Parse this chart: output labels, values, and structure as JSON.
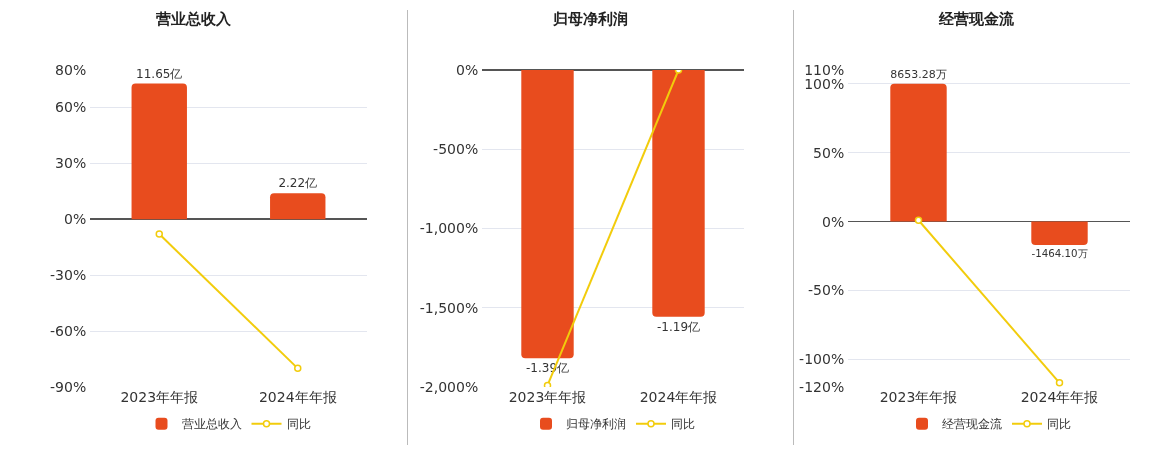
{
  "chart_data": [
    {
      "type": "bar",
      "title": "营业总收入",
      "categories": [
        "2023年年报",
        "2024年年报"
      ],
      "series": [
        {
          "name": "营业总收入",
          "color": "#e84c1e",
          "axis": "y2",
          "values": [
            11.65,
            2.22
          ],
          "value_labels": [
            "11.65亿",
            "2.22亿"
          ]
        },
        {
          "name": "同比",
          "type": "line",
          "color": "#f2cc0c",
          "values": [
            -8,
            -80
          ]
        }
      ],
      "ylim": [
        -90,
        80
      ],
      "yticks": [
        {
          "value": -90,
          "label": "-90%"
        },
        {
          "value": -60,
          "label": "-60%"
        },
        {
          "value": -30,
          "label": "-30%"
        },
        {
          "value": 0,
          "label": "0%"
        },
        {
          "value": 30,
          "label": "30%"
        },
        {
          "value": 60,
          "label": "60%"
        },
        {
          "value": 80,
          "label": "80%"
        }
      ],
      "grid": "y",
      "legend": "bottom",
      "marker": "circle"
    },
    {
      "type": "bar",
      "title": "归母净利润",
      "categories": [
        "2023年年报",
        "2024年年报"
      ],
      "series": [
        {
          "name": "归母净利润",
          "color": "#e84c1e",
          "axis": "y2",
          "values": [
            -1.39,
            -1.19
          ],
          "value_labels": [
            "-1.39亿",
            "-1.19亿"
          ]
        },
        {
          "name": "同比",
          "type": "line",
          "color": "#f2cc0c",
          "values": [
            -1990,
            0
          ]
        }
      ],
      "ylim": [
        -2000,
        0
      ],
      "yticks": [
        {
          "value": -2000,
          "label": "-2,000%"
        },
        {
          "value": -1500,
          "label": "-1,500%"
        },
        {
          "value": -1000,
          "label": "-1,000%"
        },
        {
          "value": -500,
          "label": "-500%"
        },
        {
          "value": 0,
          "label": "0%"
        }
      ],
      "grid": "y",
      "legend": "bottom",
      "marker": "circle"
    },
    {
      "type": "bar",
      "title": "经营现金流",
      "categories": [
        "2023年年报",
        "2024年年报"
      ],
      "series": [
        {
          "name": "经营现金流",
          "color": "#e84c1e",
          "axis": "y2",
          "values": [
            8653.28,
            -1464.1
          ],
          "value_labels": [
            "8653.28万",
            "-1464.10万"
          ]
        },
        {
          "name": "同比",
          "type": "line",
          "color": "#f2cc0c",
          "values": [
            1,
            -117
          ]
        }
      ],
      "ylim": [
        -120,
        110
      ],
      "yticks": [
        {
          "value": -120,
          "label": "-120%"
        },
        {
          "value": -100,
          "label": "-100%"
        },
        {
          "value": -50,
          "label": "-50%"
        },
        {
          "value": 0,
          "label": "0%"
        },
        {
          "value": 50,
          "label": "50%"
        },
        {
          "value": 100,
          "label": "100%"
        },
        {
          "value": 110,
          "label": "110%"
        }
      ],
      "grid": "y",
      "legend": "bottom",
      "marker": "circle"
    }
  ]
}
